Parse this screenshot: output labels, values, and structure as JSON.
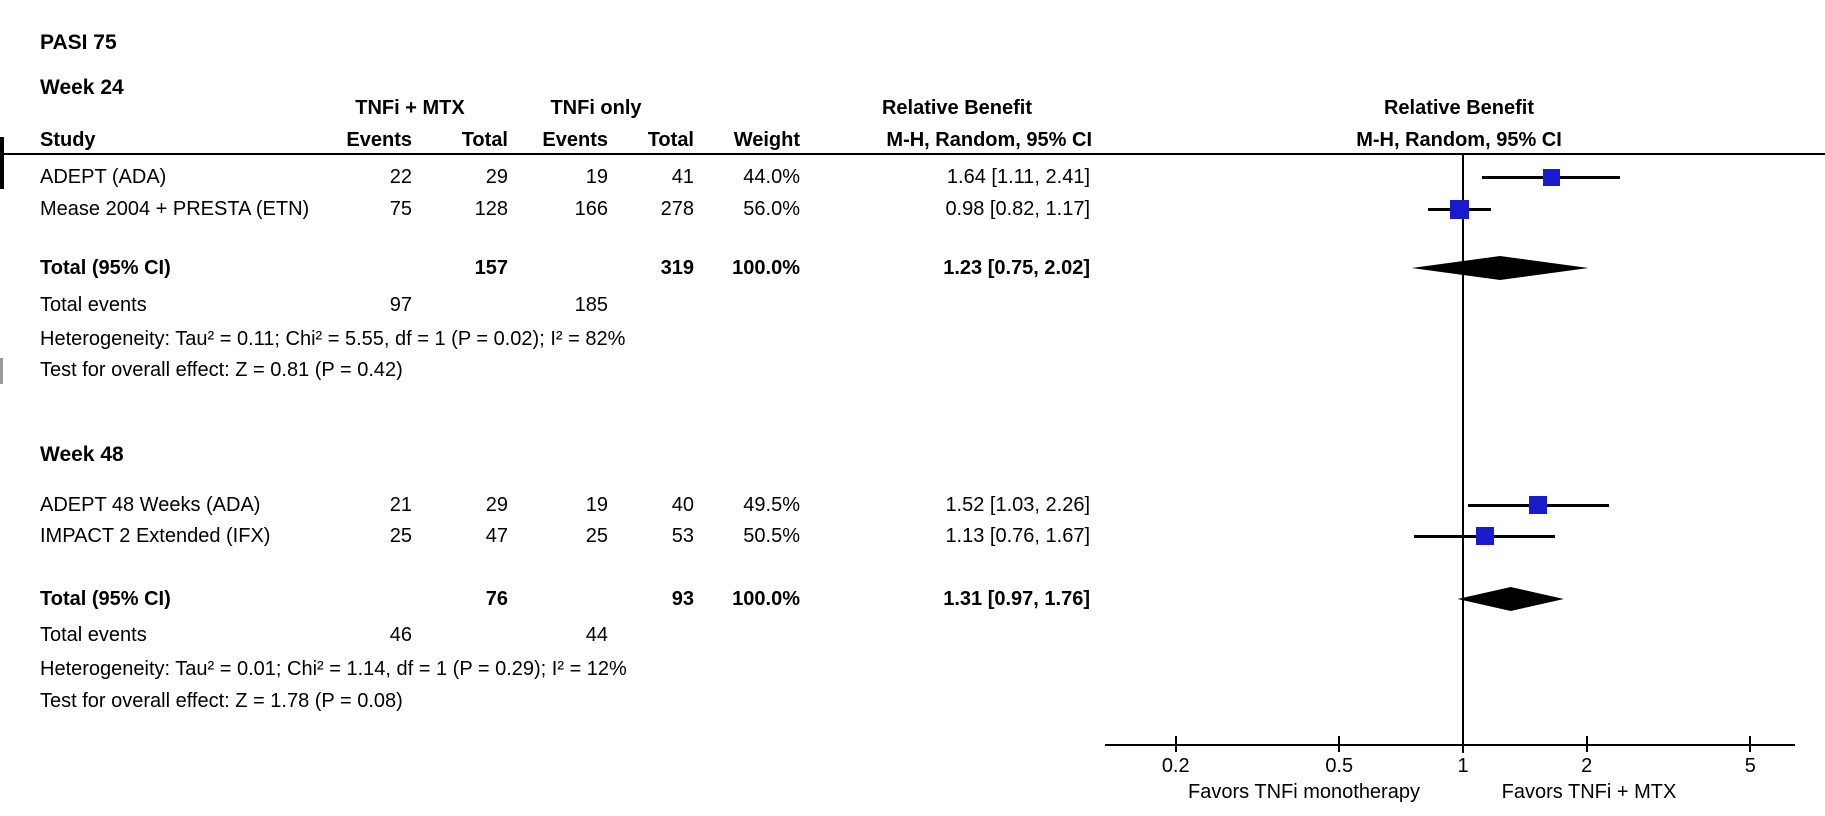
{
  "title": "PASI 75",
  "colors": {
    "marker_blue": "#1b1bce",
    "diamond_black": "#000000",
    "line_black": "#000000"
  },
  "table": {
    "group1_header": "TNFi + MTX",
    "group2_header": "TNFi only",
    "effect_header_line1": "Relative Benefit",
    "effect_header_line2": "M-H, Random, 95% CI",
    "col_study": "Study",
    "col_events": "Events",
    "col_total": "Total",
    "col_weight": "Weight"
  },
  "plot": {
    "header_line1": "Relative Benefit",
    "header_line2": "M-H, Random, 95% CI",
    "favors_left": "Favors TNFi monotherapy",
    "favors_right": "Favors TNFi + MTX"
  },
  "sections": [
    {
      "heading": "Week 24",
      "studies": [
        {
          "name": "ADEPT (ADA)",
          "events1": "22",
          "total1": "29",
          "events2": "19",
          "total2": "41",
          "weight": "44.0%",
          "weight_value": 44.0,
          "estimate": "1.64 [1.11, 2.41]",
          "rr": 1.64,
          "ci_low": 1.11,
          "ci_high": 2.41
        },
        {
          "name": "Mease 2004 + PRESTA (ETN)",
          "events1": "75",
          "total1": "128",
          "events2": "166",
          "total2": "278",
          "weight": "56.0%",
          "weight_value": 56.0,
          "estimate": "0.98 [0.82, 1.17]",
          "rr": 0.98,
          "ci_low": 0.82,
          "ci_high": 1.17
        }
      ],
      "total": {
        "label": "Total (95% CI)",
        "total1": "157",
        "total2": "319",
        "weight": "100.0%",
        "estimate": "1.23 [0.75, 2.02]",
        "rr": 1.23,
        "ci_low": 0.75,
        "ci_high": 2.02
      },
      "total_events": {
        "label": "Total events",
        "events1": "97",
        "events2": "185"
      },
      "heterogeneity": "Heterogeneity: Tau² = 0.11; Chi² = 5.55, df = 1 (P = 0.02); I² = 82%",
      "overall_effect": "Test for overall effect: Z = 0.81 (P = 0.42)"
    },
    {
      "heading": "Week 48",
      "studies": [
        {
          "name": "ADEPT 48 Weeks (ADA)",
          "events1": "21",
          "total1": "29",
          "events2": "19",
          "total2": "40",
          "weight": "49.5%",
          "weight_value": 49.5,
          "estimate": "1.52 [1.03, 2.26]",
          "rr": 1.52,
          "ci_low": 1.03,
          "ci_high": 2.26
        },
        {
          "name": "IMPACT 2 Extended (IFX)",
          "events1": "25",
          "total1": "47",
          "events2": "25",
          "total2": "53",
          "weight": "50.5%",
          "weight_value": 50.5,
          "estimate": "1.13 [0.76, 1.67]",
          "rr": 1.13,
          "ci_low": 0.76,
          "ci_high": 1.67
        }
      ],
      "total": {
        "label": "Total (95% CI)",
        "total1": "76",
        "total2": "93",
        "weight": "100.0%",
        "estimate": "1.31 [0.97, 1.76]",
        "rr": 1.31,
        "ci_low": 0.97,
        "ci_high": 1.76
      },
      "total_events": {
        "label": "Total events",
        "events1": "46",
        "events2": "44"
      },
      "heterogeneity": "Heterogeneity: Tau² = 0.01; Chi² = 1.14, df = 1 (P = 0.29); I² = 12%",
      "overall_effect": "Test for overall effect: Z = 1.78 (P = 0.08)"
    }
  ],
  "chart_data": {
    "type": "scatter",
    "chart_kind": "forest-plot",
    "title": "PASI 75",
    "x_scale": "log",
    "x_ticks": [
      0.2,
      0.5,
      1,
      2,
      5
    ],
    "x_range": [
      0.13,
      6.2
    ],
    "no_effect_line": 1,
    "xlabel_left": "Favors TNFi monotherapy",
    "xlabel_right": "Favors TNFi + MTX",
    "effect_measure": "Relative Benefit, M-H, Random, 95% CI",
    "groups": [
      {
        "name": "Week 24",
        "points": [
          {
            "study": "ADEPT (ADA)",
            "rr": 1.64,
            "ci": [
              1.11,
              2.41
            ],
            "weight_pct": 44.0
          },
          {
            "study": "Mease 2004 + PRESTA (ETN)",
            "rr": 0.98,
            "ci": [
              0.82,
              1.17
            ],
            "weight_pct": 56.0
          }
        ],
        "pooled": {
          "rr": 1.23,
          "ci": [
            0.75,
            2.02
          ]
        }
      },
      {
        "name": "Week 48",
        "points": [
          {
            "study": "ADEPT 48 Weeks (ADA)",
            "rr": 1.52,
            "ci": [
              1.03,
              2.26
            ],
            "weight_pct": 49.5
          },
          {
            "study": "IMPACT 2 Extended (IFX)",
            "rr": 1.13,
            "ci": [
              0.76,
              1.67
            ],
            "weight_pct": 50.5
          }
        ],
        "pooled": {
          "rr": 1.31,
          "ci": [
            0.97,
            1.76
          ]
        }
      }
    ]
  }
}
